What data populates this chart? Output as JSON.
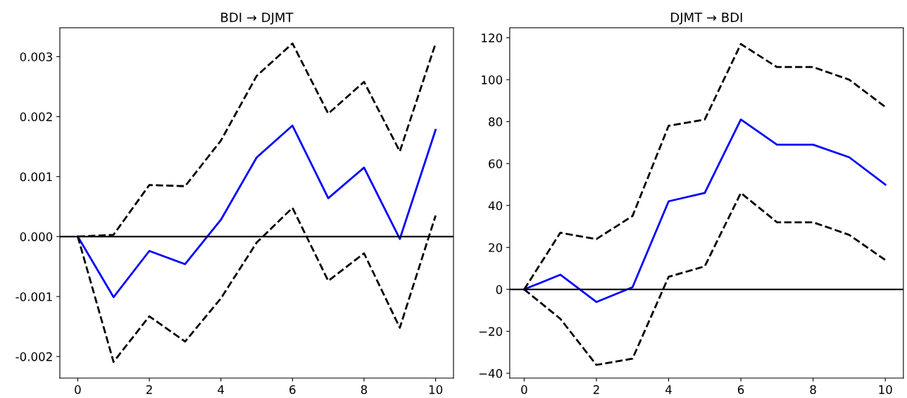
{
  "chart_data": [
    {
      "type": "line",
      "title": "BDI → DJMT",
      "x": [
        0,
        1,
        2,
        3,
        4,
        5,
        6,
        7,
        8,
        9,
        10
      ],
      "series": [
        {
          "color": "#0000ff",
          "line_style": "solid",
          "values": [
            0,
            -0.00101,
            -0.00024,
            -0.00046,
            0.00028,
            0.00132,
            0.00185,
            0.00064,
            0.00115,
            -4e-05,
            0.00178
          ]
        },
        {
          "color": "#000000",
          "line_style": "dashed",
          "values": [
            0,
            3e-05,
            0.00086,
            0.00084,
            0.0016,
            0.00268,
            0.00322,
            0.00205,
            0.00258,
            0.00142,
            0.00322
          ]
        },
        {
          "color": "#000000",
          "line_style": "dashed",
          "values": [
            0,
            -0.00209,
            -0.00133,
            -0.00175,
            -0.00103,
            -0.0001,
            0.00048,
            -0.00074,
            -0.00028,
            -0.00152,
            0.00035
          ]
        }
      ],
      "xlim": [
        -0.5,
        10.5
      ],
      "xticks": [
        0,
        2,
        4,
        6,
        8,
        10
      ],
      "ylim": [
        -0.00236,
        0.00348
      ],
      "yticks": [
        {
          "value": -0.002,
          "label": "-0.002"
        },
        {
          "value": -0.001,
          "label": "-0.001"
        },
        {
          "value": 0,
          "label": "0.000"
        },
        {
          "value": 0.001,
          "label": "0.001"
        },
        {
          "value": 0.002,
          "label": "0.002"
        },
        {
          "value": 0.003,
          "label": "0.003"
        }
      ],
      "ref_lines": [
        {
          "axis": "y",
          "value": 0,
          "color": "#000000"
        }
      ],
      "grid": false,
      "legend": false,
      "marker": "none"
    },
    {
      "type": "line",
      "title": "DJMT → BDI",
      "x": [
        0,
        1,
        2,
        3,
        4,
        5,
        6,
        7,
        8,
        9,
        10
      ],
      "series": [
        {
          "color": "#0000ff",
          "line_style": "solid",
          "values": [
            0,
            7,
            -6,
            1,
            42,
            46,
            81,
            69,
            69,
            63,
            50
          ]
        },
        {
          "color": "#000000",
          "line_style": "dashed",
          "values": [
            0,
            27,
            24,
            35,
            78,
            81,
            117,
            106,
            106,
            100,
            87
          ]
        },
        {
          "color": "#000000",
          "line_style": "dashed",
          "values": [
            0,
            -14,
            -36,
            -33,
            6,
            11,
            46,
            32,
            32,
            26,
            14
          ]
        }
      ],
      "xlim": [
        -0.4,
        10.5
      ],
      "xticks": [
        0,
        2,
        4,
        6,
        8,
        10
      ],
      "ylim": [
        -42.3,
        124.7
      ],
      "yticks": [
        {
          "value": -40,
          "label": "−40"
        },
        {
          "value": -20,
          "label": "−20"
        },
        0,
        20,
        40,
        60,
        80,
        100,
        120
      ],
      "ref_lines": [
        {
          "axis": "y",
          "value": 0,
          "color": "#000000"
        }
      ],
      "grid": false,
      "legend": false,
      "marker": "none"
    }
  ]
}
